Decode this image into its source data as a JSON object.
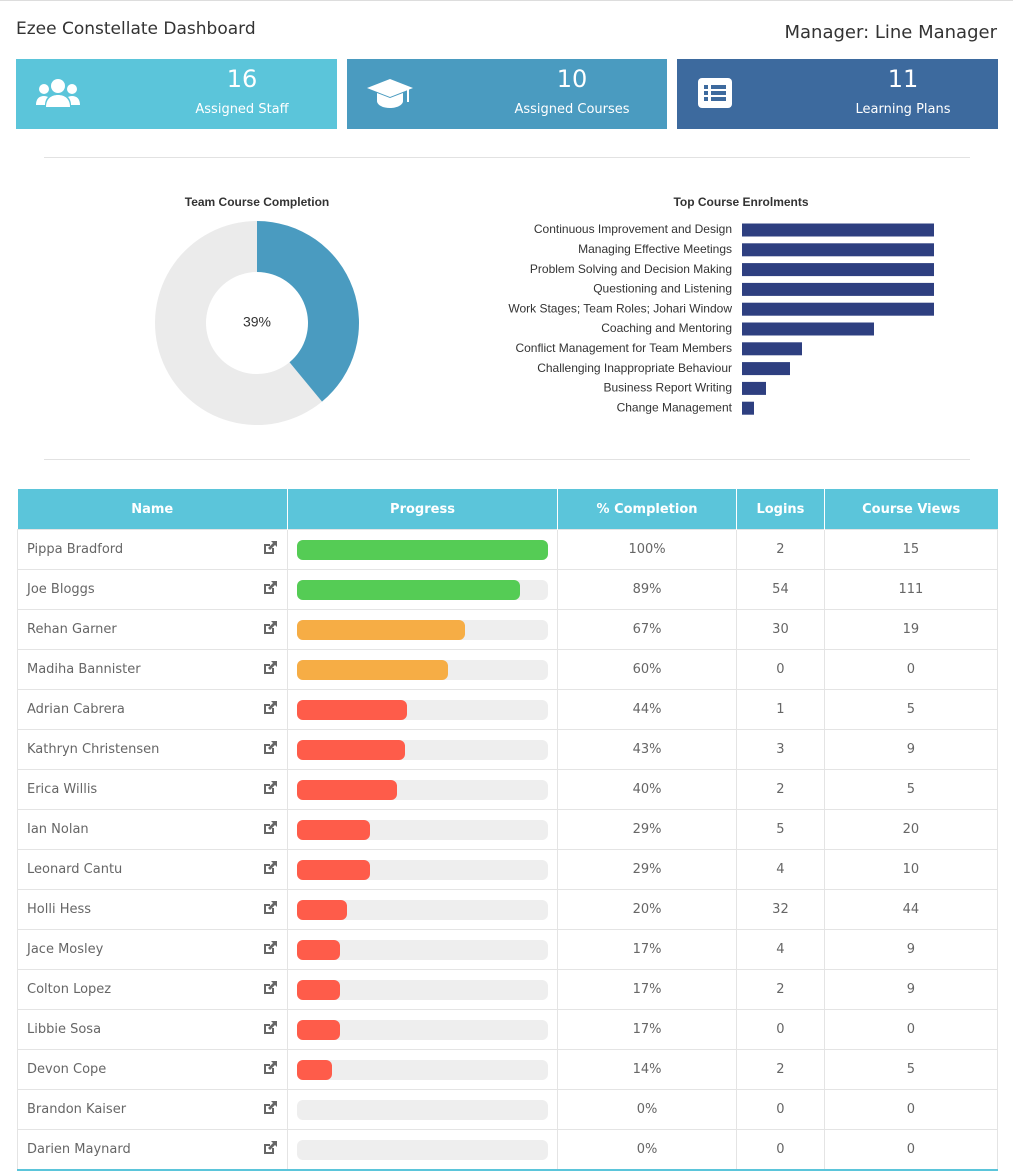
{
  "header": {
    "title": "Ezee Constellate Dashboard",
    "manager": "Manager: Line Manager"
  },
  "stats": [
    {
      "value": 16,
      "label": "Assigned Staff",
      "color": "#5bc5da"
    },
    {
      "value": 10,
      "label": "Assigned Courses",
      "color": "#4a9bc0"
    },
    {
      "value": 11,
      "label": "Learning Plans",
      "color": "#3d6a9e"
    }
  ],
  "completion_chart": {
    "type": "donut",
    "title": "Team Course Completion",
    "value": 39,
    "value_label": "39%",
    "max": 100,
    "color": "#4a9bc0",
    "rest_color": "#ebebeb"
  },
  "enrolments_chart": {
    "type": "bar",
    "title": "Top Course Enrolments",
    "orientation": "horizontal",
    "color": "#2e3f80",
    "categories": [
      "Continuous Improvement and Design",
      "Managing Effective Meetings",
      "Problem Solving and Decision Making",
      "Questioning and Listening",
      "Work Stages; Team Roles; Johari Window",
      "Coaching and Mentoring",
      "Conflict Management for Team Members",
      "Challenging Inappropriate Behaviour",
      "Business Report Writing",
      "Change Management"
    ],
    "values": [
      16,
      16,
      16,
      16,
      16,
      11,
      5,
      4,
      2,
      1
    ],
    "xlim": [
      0,
      16
    ]
  },
  "table": {
    "columns": [
      "Name",
      "Progress",
      "% Completion",
      "Logins",
      "Course Views"
    ],
    "rows": [
      {
        "name": "Pippa Bradford",
        "completion": {
          "value": 100,
          "label": "100%"
        },
        "logins": 2,
        "views": 15
      },
      {
        "name": "Joe Bloggs",
        "completion": {
          "value": 89,
          "label": "89%"
        },
        "logins": 54,
        "views": 111
      },
      {
        "name": "Rehan Garner",
        "completion": {
          "value": 67,
          "label": "67%"
        },
        "logins": 30,
        "views": 19
      },
      {
        "name": "Madiha Bannister",
        "completion": {
          "value": 60,
          "label": "60%"
        },
        "logins": 0,
        "views": 0
      },
      {
        "name": "Adrian Cabrera",
        "completion": {
          "value": 44,
          "label": "44%"
        },
        "logins": 1,
        "views": 5
      },
      {
        "name": "Kathryn Christensen",
        "completion": {
          "value": 43,
          "label": "43%"
        },
        "logins": 3,
        "views": 9
      },
      {
        "name": "Erica Willis",
        "completion": {
          "value": 40,
          "label": "40%"
        },
        "logins": 2,
        "views": 5
      },
      {
        "name": "Ian Nolan",
        "completion": {
          "value": 29,
          "label": "29%"
        },
        "logins": 5,
        "views": 20
      },
      {
        "name": "Leonard Cantu",
        "completion": {
          "value": 29,
          "label": "29%"
        },
        "logins": 4,
        "views": 10
      },
      {
        "name": "Holli Hess",
        "completion": {
          "value": 20,
          "label": "20%"
        },
        "logins": 32,
        "views": 44
      },
      {
        "name": "Jace Mosley",
        "completion": {
          "value": 17,
          "label": "17%"
        },
        "logins": 4,
        "views": 9
      },
      {
        "name": "Colton Lopez",
        "completion": {
          "value": 17,
          "label": "17%"
        },
        "logins": 2,
        "views": 9
      },
      {
        "name": "Libbie Sosa",
        "completion": {
          "value": 17,
          "label": "17%"
        },
        "logins": 0,
        "views": 0
      },
      {
        "name": "Devon Cope",
        "completion": {
          "value": 14,
          "label": "14%"
        },
        "logins": 2,
        "views": 5
      },
      {
        "name": "Brandon Kaiser",
        "completion": {
          "value": 0,
          "label": "0%"
        },
        "logins": 0,
        "views": 0
      },
      {
        "name": "Darien Maynard",
        "completion": {
          "value": 0,
          "label": "0%"
        },
        "logins": 0,
        "views": 0
      }
    ],
    "progress_colors": {
      "high": "#55cc55",
      "mid": "#f6ad45",
      "low": "#fe5c4a",
      "track": "#eeeeee"
    }
  }
}
